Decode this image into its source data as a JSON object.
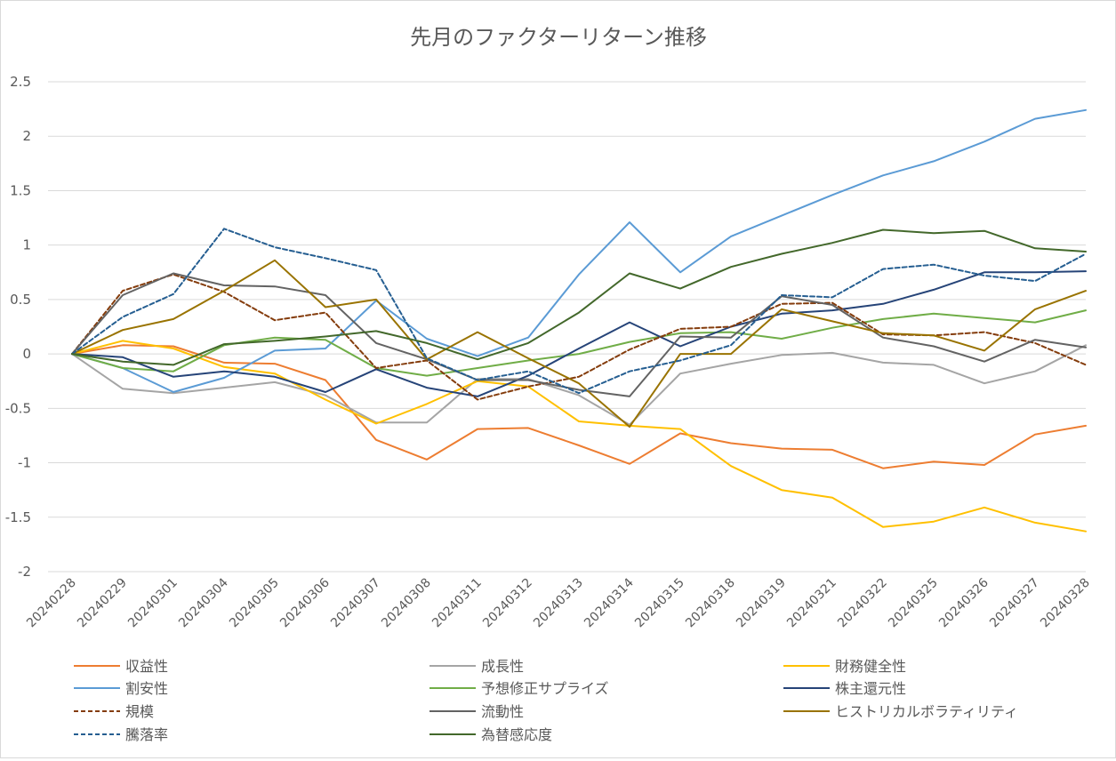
{
  "chart_data": {
    "type": "line",
    "title": "先月のファクターリターン推移",
    "xlabel": "",
    "ylabel": "",
    "ylim": [
      -2,
      2.5
    ],
    "yticks": [
      "2.5",
      "2",
      "1.5",
      "1",
      "0.5",
      "0",
      "-0.5",
      "-1",
      "-1.5",
      "-2"
    ],
    "grid": true,
    "legend_position": "bottom",
    "categories": [
      "20240228",
      "20240229",
      "20240301",
      "20240304",
      "20240305",
      "20240306",
      "20240307",
      "20240308",
      "20240311",
      "20240312",
      "20240313",
      "20240314",
      "20240315",
      "20240318",
      "20240319",
      "20240321",
      "20240322",
      "20240325",
      "20240326",
      "20240327",
      "20240328"
    ],
    "series": [
      {
        "name": "収益性",
        "color": "#ED7D31",
        "dash": false,
        "values": [
          0,
          0.08,
          0.07,
          -0.08,
          -0.09,
          -0.24,
          -0.79,
          -0.97,
          -0.69,
          -0.68,
          -0.84,
          -1.01,
          -0.73,
          -0.82,
          -0.87,
          -0.88,
          -1.05,
          -0.99,
          -1.02,
          -0.74,
          -0.66
        ]
      },
      {
        "name": "成長性",
        "color": "#A5A5A5",
        "dash": false,
        "values": [
          0,
          -0.32,
          -0.36,
          -0.31,
          -0.26,
          -0.38,
          -0.63,
          -0.63,
          -0.23,
          -0.23,
          -0.38,
          -0.65,
          -0.18,
          -0.09,
          -0.01,
          0.01,
          -0.08,
          -0.1,
          -0.27,
          -0.16,
          0.08
        ]
      },
      {
        "name": "財務健全性",
        "color": "#FFC000",
        "dash": false,
        "values": [
          0,
          0.12,
          0.05,
          -0.12,
          -0.18,
          -0.42,
          -0.64,
          -0.46,
          -0.25,
          -0.3,
          -0.62,
          -0.66,
          -0.69,
          -1.03,
          -1.25,
          -1.32,
          -1.59,
          -1.54,
          -1.41,
          -1.55,
          -1.63
        ]
      },
      {
        "name": "割安性",
        "color": "#5B9BD5",
        "dash": false,
        "values": [
          0,
          -0.13,
          -0.35,
          -0.22,
          0.03,
          0.05,
          0.49,
          0.14,
          -0.02,
          0.15,
          0.73,
          1.21,
          0.75,
          1.08,
          1.27,
          1.46,
          1.64,
          1.77,
          1.95,
          2.16,
          2.24
        ]
      },
      {
        "name": "予想修正サプライズ",
        "color": "#70AD47",
        "dash": false,
        "values": [
          0,
          -0.13,
          -0.16,
          0.08,
          0.15,
          0.13,
          -0.13,
          -0.2,
          -0.13,
          -0.06,
          0.0,
          0.11,
          0.19,
          0.2,
          0.14,
          0.24,
          0.32,
          0.37,
          0.33,
          0.29,
          0.4
        ]
      },
      {
        "name": "株主還元性",
        "color": "#264478",
        "dash": false,
        "values": [
          0,
          -0.03,
          -0.21,
          -0.16,
          -0.21,
          -0.35,
          -0.14,
          -0.31,
          -0.39,
          -0.2,
          0.05,
          0.29,
          0.07,
          0.25,
          0.37,
          0.4,
          0.46,
          0.59,
          0.75,
          0.75,
          0.76
        ]
      },
      {
        "name": "規模",
        "color": "#843C0C",
        "dash": true,
        "values": [
          0,
          0.58,
          0.73,
          0.57,
          0.31,
          0.38,
          -0.13,
          -0.06,
          -0.42,
          -0.3,
          -0.21,
          0.04,
          0.23,
          0.25,
          0.46,
          0.47,
          0.18,
          0.17,
          0.2,
          0.1,
          -0.1
        ]
      },
      {
        "name": "流動性",
        "color": "#636363",
        "dash": false,
        "values": [
          0,
          0.54,
          0.74,
          0.63,
          0.62,
          0.54,
          0.1,
          -0.05,
          -0.24,
          -0.24,
          -0.33,
          -0.39,
          0.16,
          0.15,
          0.53,
          0.45,
          0.15,
          0.07,
          -0.07,
          0.13,
          0.06
        ]
      },
      {
        "name": "ヒストリカルボラティリティ",
        "color": "#997300",
        "dash": false,
        "values": [
          0,
          0.22,
          0.32,
          0.58,
          0.86,
          0.43,
          0.5,
          -0.05,
          0.2,
          -0.04,
          -0.27,
          -0.67,
          0.0,
          0.0,
          0.41,
          0.3,
          0.19,
          0.17,
          0.03,
          0.41,
          0.58
        ]
      },
      {
        "name": "騰落率",
        "color": "#255E91",
        "dash": true,
        "values": [
          0,
          0.34,
          0.55,
          1.15,
          0.98,
          0.88,
          0.77,
          -0.04,
          -0.24,
          -0.16,
          -0.36,
          -0.16,
          -0.06,
          0.08,
          0.54,
          0.52,
          0.78,
          0.82,
          0.72,
          0.67,
          0.92
        ]
      },
      {
        "name": "為替感応度",
        "color": "#43682B",
        "dash": false,
        "values": [
          0,
          -0.07,
          -0.1,
          0.09,
          0.12,
          0.16,
          0.21,
          0.1,
          -0.05,
          0.1,
          0.38,
          0.74,
          0.6,
          0.8,
          0.92,
          1.02,
          1.14,
          1.11,
          1.13,
          0.97,
          0.94
        ]
      }
    ]
  }
}
